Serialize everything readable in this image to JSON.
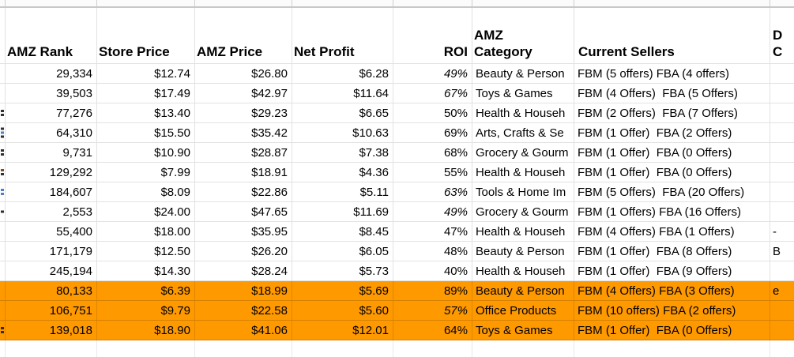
{
  "app": {
    "type": "spreadsheet",
    "description": "product sourcing sheet with highlighted rows"
  },
  "colors": {
    "highlight": "#ff9900",
    "gridline": "#e2e2e2",
    "text": "#000000",
    "fragment_dark": "#2f2f2f",
    "fragment_blue": "#4d7fc4",
    "fragment_brown": "#7a4a21"
  },
  "sheet": {
    "headers": {
      "rank": "AMZ Rank",
      "store_price": "Store Price",
      "amz_price": "AMZ Price",
      "net_profit": "Net Profit",
      "roi": "ROI",
      "category_line1": "AMZ",
      "category_line2": "Category",
      "sellers": "Current Sellers",
      "extra_line1": "D",
      "extra_line2": "C"
    },
    "rows": [
      {
        "rank": "29,334",
        "store_price": "$12.74",
        "amz_price": "$26.80",
        "net_profit": "$6.28",
        "roi": "49%",
        "roi_italic": true,
        "category": "Beauty & Person",
        "sellers": "FBM (5 offers) FBA (4 offers)",
        "extra": "",
        "highlighted": false,
        "marks": []
      },
      {
        "rank": "39,503",
        "store_price": "$17.49",
        "amz_price": "$42.97",
        "net_profit": "$11.64",
        "roi": "67%",
        "roi_italic": true,
        "category": "Toys & Games",
        "sellers": "FBM (4 Offers)  FBA (5 Offers)",
        "extra": "",
        "highlighted": false,
        "marks": []
      },
      {
        "rank": "77,276",
        "store_price": "$13.40",
        "amz_price": "$29.23",
        "net_profit": "$6.65",
        "roi": "50%",
        "roi_italic": false,
        "category": "Health & Househ",
        "sellers": "FBM (2 Offers)  FBA (7 Offers)",
        "extra": "",
        "highlighted": false,
        "marks": [
          "dark",
          "dark"
        ]
      },
      {
        "rank": "64,310",
        "store_price": "$15.50",
        "amz_price": "$35.42",
        "net_profit": "$10.63",
        "roi": "69%",
        "roi_italic": false,
        "category": "Arts, Crafts & Se",
        "sellers": "FBM (1 Offer)  FBA (2 Offers)",
        "extra": "",
        "highlighted": false,
        "marks": [
          "dark",
          "blue",
          "dark"
        ]
      },
      {
        "rank": "9,731",
        "store_price": "$10.90",
        "amz_price": "$28.87",
        "net_profit": "$7.38",
        "roi": "68%",
        "roi_italic": false,
        "category": "Grocery & Gourm",
        "sellers": "FBM (1 Offer)  FBA (0 Offers)",
        "extra": "",
        "highlighted": false,
        "marks": [
          "dark",
          "dark"
        ]
      },
      {
        "rank": "129,292",
        "store_price": "$7.99",
        "amz_price": "$18.91",
        "net_profit": "$4.36",
        "roi": "55%",
        "roi_italic": false,
        "category": "Health & Househ",
        "sellers": "FBM (1 Offer)  FBA (0 Offers)",
        "extra": "",
        "highlighted": false,
        "marks": [
          "brown",
          "dark"
        ]
      },
      {
        "rank": "184,607",
        "store_price": "$8.09",
        "amz_price": "$22.86",
        "net_profit": "$5.11",
        "roi": "63%",
        "roi_italic": true,
        "category": "Tools & Home Im",
        "sellers": "FBM (5 Offers)  FBA (20 Offers)",
        "extra": "",
        "highlighted": false,
        "marks": [
          "blue",
          "blue"
        ]
      },
      {
        "rank": "2,553",
        "store_price": "$24.00",
        "amz_price": "$47.65",
        "net_profit": "$11.69",
        "roi": "49%",
        "roi_italic": true,
        "category": "Grocery & Gourm",
        "sellers": "FBM (1 Offers) FBA (16 Offers)",
        "extra": "",
        "highlighted": false,
        "marks": [
          "dark"
        ]
      },
      {
        "rank": "55,400",
        "store_price": "$18.00",
        "amz_price": "$35.95",
        "net_profit": "$8.45",
        "roi": "47%",
        "roi_italic": false,
        "category": "Health & Househ",
        "sellers": "FBM (4 Offers) FBA (1 Offers)",
        "extra": "-",
        "highlighted": false,
        "marks": []
      },
      {
        "rank": "171,179",
        "store_price": "$12.50",
        "amz_price": "$26.20",
        "net_profit": "$6.05",
        "roi": "48%",
        "roi_italic": false,
        "category": "Beauty & Person",
        "sellers": "FBM (1 Offer)  FBA (8 Offers)",
        "extra": "B",
        "highlighted": false,
        "marks": []
      },
      {
        "rank": "245,194",
        "store_price": "$14.30",
        "amz_price": "$28.24",
        "net_profit": "$5.73",
        "roi": "40%",
        "roi_italic": false,
        "category": "Health & Househ",
        "sellers": "FBM (1 Offer)  FBA (9 Offers)",
        "extra": "",
        "highlighted": false,
        "marks": []
      },
      {
        "rank": "80,133",
        "store_price": "$6.39",
        "amz_price": "$18.99",
        "net_profit": "$5.69",
        "roi": "89%",
        "roi_italic": false,
        "category": "Beauty & Person",
        "sellers": "FBM (4 Offers) FBA (3 Offers)",
        "extra": "e",
        "highlighted": true,
        "marks": []
      },
      {
        "rank": "106,751",
        "store_price": "$9.79",
        "amz_price": "$22.58",
        "net_profit": "$5.60",
        "roi": "57%",
        "roi_italic": true,
        "category": "Office Products",
        "sellers": "FBM (10 offers) FBA (2 offers)",
        "extra": "",
        "highlighted": true,
        "marks": []
      },
      {
        "rank": "139,018",
        "store_price": "$18.90",
        "amz_price": "$41.06",
        "net_profit": "$12.01",
        "roi": "64%",
        "roi_italic": false,
        "category": "Toys & Games",
        "sellers": "FBM (1 Offer)  FBA (0 Offers)",
        "extra": "",
        "highlighted": true,
        "marks": [
          "dark",
          "dark"
        ]
      }
    ]
  }
}
